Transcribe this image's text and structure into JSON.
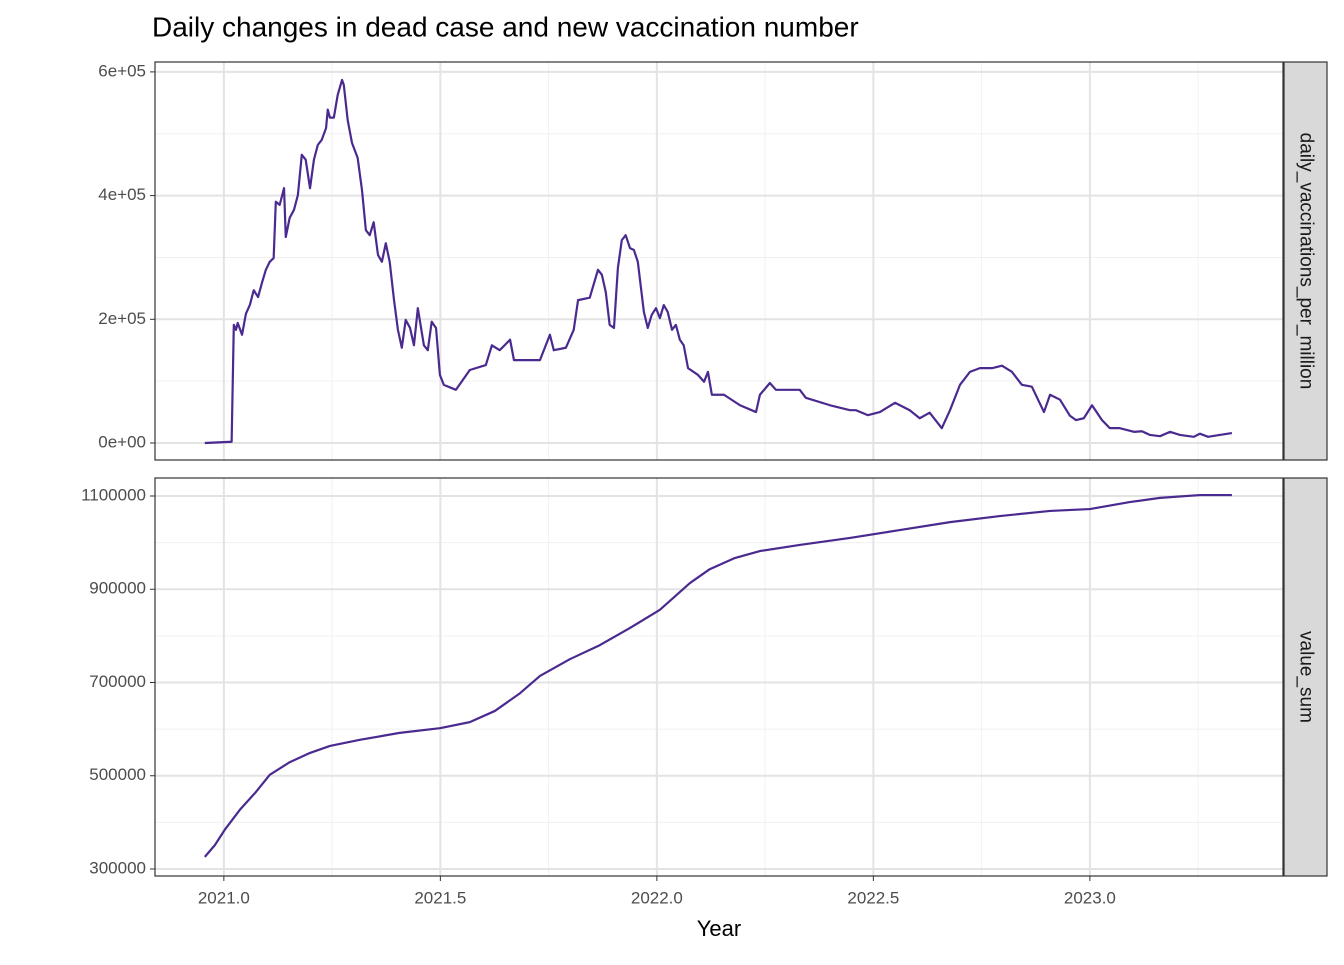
{
  "chart_data": [
    {
      "type": "line",
      "title": "Daily changes in dead case and new vaccination number",
      "strip_label": "daily_vaccinations_per_million",
      "color": "#4a2a8f",
      "ylim": [
        -27500,
        616000
      ],
      "yticks": [
        {
          "value": 0,
          "label": "0e+00"
        },
        {
          "value": 200000,
          "label": "2e+05"
        },
        {
          "value": 400000,
          "label": "4e+05"
        },
        {
          "value": 600000,
          "label": "6e+05"
        }
      ],
      "grid": true,
      "x": [
        2020.956,
        2021.018,
        2021.023,
        2021.028,
        2021.032,
        2021.042,
        2021.051,
        2021.06,
        2021.069,
        2021.079,
        2021.088,
        2021.097,
        2021.106,
        2021.115,
        2021.12,
        2021.129,
        2021.139,
        2021.143,
        2021.152,
        2021.162,
        2021.171,
        2021.18,
        2021.189,
        2021.199,
        2021.208,
        2021.217,
        2021.226,
        2021.236,
        2021.24,
        2021.245,
        2021.254,
        2021.263,
        2021.273,
        2021.277,
        2021.286,
        2021.296,
        2021.309,
        2021.319,
        2021.328,
        2021.337,
        2021.346,
        2021.356,
        2021.365,
        2021.374,
        2021.383,
        2021.393,
        2021.402,
        2021.411,
        2021.42,
        2021.43,
        2021.439,
        2021.448,
        2021.462,
        2021.471,
        2021.48,
        2021.49,
        2021.499,
        2021.508,
        2021.536,
        2021.568,
        2021.605,
        2021.619,
        2021.637,
        2021.661,
        2021.67,
        2021.697,
        2021.73,
        2021.753,
        2021.762,
        2021.79,
        2021.808,
        2021.818,
        2021.845,
        2021.864,
        2021.873,
        2021.882,
        2021.891,
        2021.901,
        2021.91,
        2021.919,
        2021.928,
        2021.938,
        2021.947,
        2021.956,
        2021.97,
        2021.979,
        2021.988,
        2021.998,
        2022.007,
        2022.016,
        2022.025,
        2022.035,
        2022.044,
        2022.053,
        2022.062,
        2022.072,
        2022.095,
        2022.109,
        2022.118,
        2022.127,
        2022.155,
        2022.192,
        2022.229,
        2022.238,
        2022.261,
        2022.275,
        2022.33,
        2022.344,
        2022.4,
        2022.446,
        2022.46,
        2022.487,
        2022.515,
        2022.55,
        2022.584,
        2022.607,
        2022.63,
        2022.658,
        2022.677,
        2022.7,
        2022.723,
        2022.746,
        2022.774,
        2022.797,
        2022.82,
        2022.843,
        2022.866,
        2022.894,
        2022.908,
        2022.931,
        2022.954,
        2022.968,
        2022.986,
        2023.005,
        2023.028,
        2023.046,
        2023.069,
        2023.102,
        2023.12,
        2023.139,
        2023.162,
        2023.185,
        2023.208,
        2023.24,
        2023.254,
        2023.273,
        2023.3,
        2023.328
      ],
      "values": [
        0,
        2000,
        191000,
        183000,
        194000,
        175000,
        209000,
        223000,
        247000,
        236000,
        259000,
        280000,
        293000,
        299000,
        390000,
        385000,
        412000,
        333000,
        364000,
        377000,
        401000,
        466000,
        458000,
        412000,
        458000,
        482000,
        490000,
        509000,
        539000,
        526000,
        526000,
        563000,
        587000,
        579000,
        522000,
        485000,
        461000,
        409000,
        344000,
        336000,
        357000,
        304000,
        293000,
        323000,
        293000,
        231000,
        183000,
        154000,
        199000,
        186000,
        158000,
        218000,
        158000,
        150000,
        196000,
        186000,
        110000,
        94000,
        86000,
        118000,
        126000,
        158000,
        150000,
        167000,
        134000,
        134000,
        134000,
        175000,
        150000,
        154000,
        183000,
        231000,
        235000,
        280000,
        272000,
        244000,
        191000,
        186000,
        283000,
        328000,
        336000,
        315000,
        312000,
        293000,
        212000,
        186000,
        207000,
        218000,
        202000,
        223000,
        212000,
        183000,
        191000,
        167000,
        158000,
        121000,
        110000,
        99000,
        115000,
        78000,
        78000,
        61000,
        50000,
        78000,
        97000,
        86000,
        86000,
        73000,
        61000,
        53000,
        53000,
        45000,
        50000,
        65000,
        53000,
        40000,
        49000,
        24000,
        53000,
        94000,
        115000,
        121000,
        121000,
        125000,
        115000,
        94000,
        91000,
        50000,
        78000,
        70000,
        44000,
        37000,
        40000,
        61000,
        37000,
        24000,
        24000,
        18000,
        19000,
        13000,
        11000,
        18000,
        13000,
        10000,
        15000,
        10000,
        13000,
        16000
      ]
    },
    {
      "type": "line",
      "strip_label": "value_sum",
      "x_label": "Year",
      "color": "#4a2a8f",
      "xlim": [
        2020.841,
        2023.446
      ],
      "xticks": [
        {
          "value": 2021,
          "label": "2021.0"
        },
        2021.5,
        {
          "value": 2022,
          "label": "2022.0"
        },
        2022.5,
        {
          "value": 2023,
          "label": "2023.0"
        }
      ],
      "ylim": [
        285000,
        1138600
      ],
      "yticks": [
        300000,
        500000,
        700000,
        900000,
        1100000
      ],
      "grid": true,
      "x": [
        2020.956,
        2020.979,
        2021.002,
        2021.037,
        2021.072,
        2021.106,
        2021.152,
        2021.199,
        2021.245,
        2021.314,
        2021.406,
        2021.499,
        2021.568,
        2021.626,
        2021.684,
        2021.73,
        2021.799,
        2021.868,
        2021.938,
        2022.007,
        2022.076,
        2022.122,
        2022.18,
        2022.238,
        2022.33,
        2022.446,
        2022.561,
        2022.677,
        2022.792,
        2022.908,
        2023.0,
        2023.092,
        2023.162,
        2023.254,
        2023.328
      ],
      "values": [
        326000,
        351000,
        384000,
        427000,
        463000,
        502000,
        529000,
        549000,
        564000,
        577000,
        592000,
        602000,
        615000,
        639000,
        677000,
        714000,
        750000,
        780000,
        817000,
        856000,
        913000,
        943000,
        967000,
        982000,
        995000,
        1010000,
        1027000,
        1044000,
        1057000,
        1068000,
        1072000,
        1087000,
        1096000,
        1102000,
        1102000
      ]
    }
  ]
}
